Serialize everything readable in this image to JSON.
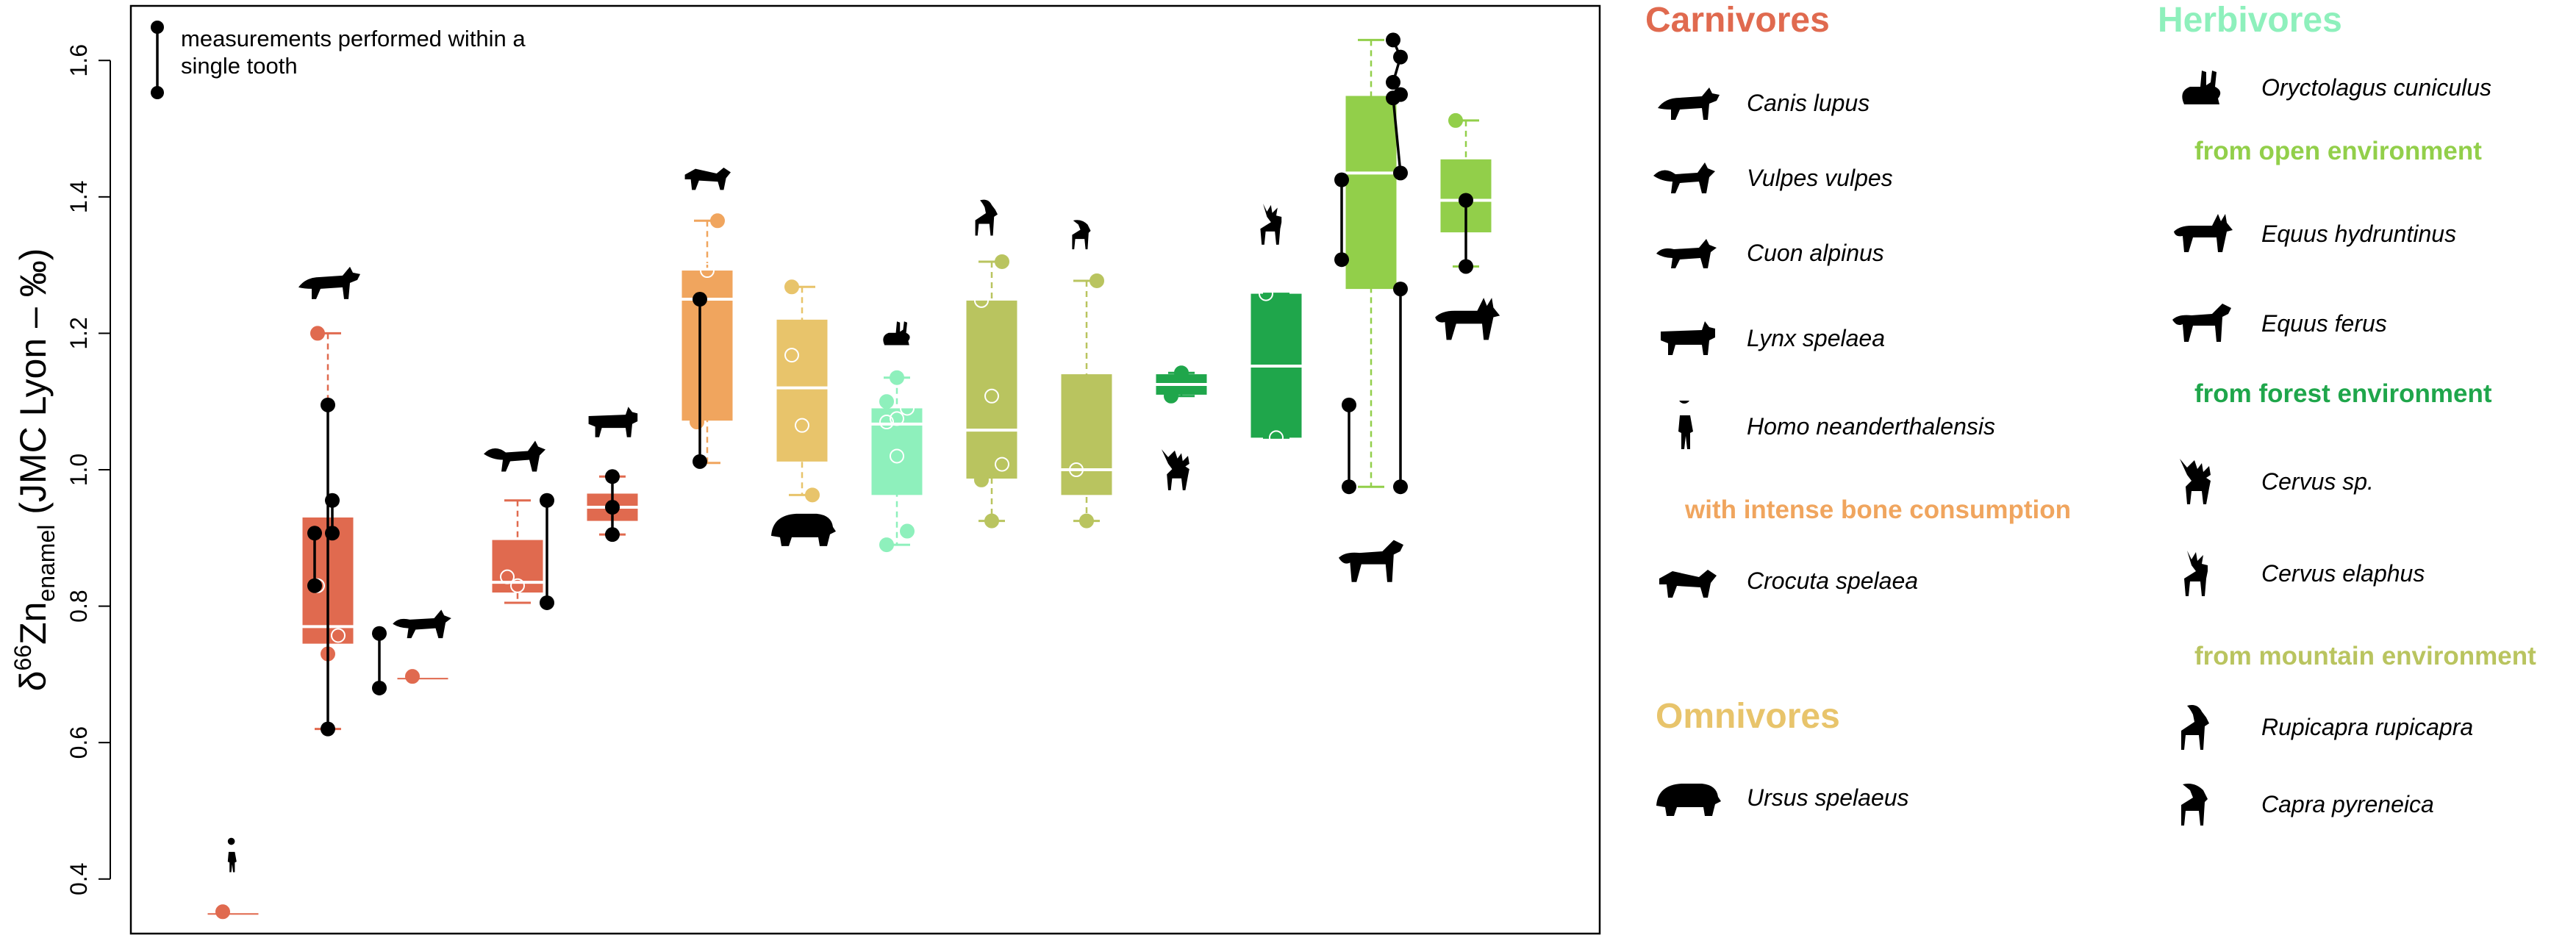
{
  "chart_data": {
    "type": "box",
    "ylabel_prefix": "δ",
    "ylabel_sup": "66",
    "ylabel_main": "Zn",
    "ylabel_sub": "enamel",
    "ylabel_rest": " (JMC Lyon ‒ ‰)",
    "ylim": [
      0.32,
      1.68
    ],
    "yticks": [
      "0.4",
      "0.6",
      "0.8",
      "1.0",
      "1.2",
      "1.4",
      "1.6"
    ],
    "ytick_values": [
      0.4,
      0.6,
      0.8,
      1.0,
      1.2,
      1.4,
      1.6
    ],
    "grid": false,
    "note": {
      "line1": "measurements performed within a",
      "line2": "single tooth"
    },
    "colors": {
      "carnivore": "#e06a4f",
      "bone": "#f0a55e",
      "omnivore": "#e8c46b",
      "herbivore_rabbit": "#8ef0bc",
      "open": "#92cf4a",
      "forest": "#1fa64b",
      "mountain": "#b9c45f",
      "tooth_link": "#000000"
    },
    "groups": [
      {
        "species": "Homo neanderthalensis",
        "color": "carnivore",
        "icon": "human-icon",
        "q1": 0.352,
        "median": 0.352,
        "q3": 0.352,
        "whisker_low": 0.352,
        "whisker_high": 0.352,
        "points": [
          0.352
        ]
      },
      {
        "species": "Canis lupus",
        "color": "carnivore",
        "icon": "wolf-icon",
        "q1": 0.745,
        "median": 0.77,
        "q3": 0.93,
        "whisker_low": 0.62,
        "whisker_high": 1.2,
        "points": [
          0.83,
          0.73,
          0.757,
          1.2
        ]
      },
      {
        "species": "Cuon alpinus",
        "color": "carnivore",
        "icon": "dhole-icon",
        "q1": 0.697,
        "median": 0.697,
        "q3": 0.697,
        "whisker_low": 0.697,
        "whisker_high": 0.697,
        "points": [
          0.697
        ]
      },
      {
        "species": "Vulpes vulpes",
        "color": "carnivore",
        "icon": "fox-icon",
        "q1": 0.82,
        "median": 0.835,
        "q3": 0.897,
        "whisker_low": 0.805,
        "whisker_high": 0.955,
        "points": [
          0.843,
          0.83
        ]
      },
      {
        "species": "Lynx spelaea",
        "color": "carnivore",
        "icon": "lynx-icon",
        "q1": 0.925,
        "median": 0.945,
        "q3": 0.965,
        "whisker_low": 0.905,
        "whisker_high": 0.99,
        "points": []
      },
      {
        "species": "Crocuta spelaea",
        "color": "bone",
        "icon": "hyena-icon",
        "q1": 1.072,
        "median": 1.25,
        "q3": 1.292,
        "whisker_low": 1.01,
        "whisker_high": 1.365,
        "points": [
          1.07,
          1.292,
          1.365
        ]
      },
      {
        "species": "Ursus spelaeus",
        "color": "omnivore",
        "icon": "bear-icon",
        "q1": 1.012,
        "median": 1.12,
        "q3": 1.22,
        "whisker_low": 0.963,
        "whisker_high": 1.268,
        "points": [
          1.168,
          1.065,
          0.963,
          1.268
        ]
      },
      {
        "species": "Oryctolagus cuniculus",
        "color": "herbivore_rabbit",
        "icon": "rabbit-icon",
        "q1": 0.963,
        "median": 1.067,
        "q3": 1.09,
        "whisker_low": 0.89,
        "whisker_high": 1.135,
        "points": [
          1.07,
          1.075,
          1.09,
          1.1,
          1.02,
          0.91,
          0.89,
          1.135
        ]
      },
      {
        "species": "Rupicapra rupicapra",
        "color": "mountain",
        "icon": "chamois-icon",
        "q1": 0.987,
        "median": 1.058,
        "q3": 1.248,
        "whisker_low": 0.925,
        "whisker_high": 1.305,
        "points": [
          1.248,
          1.108,
          1.008,
          0.985,
          0.925,
          1.305
        ]
      },
      {
        "species": "Capra pyreneica",
        "color": "mountain",
        "icon": "ibex-icon",
        "q1": 0.963,
        "median": 1.0,
        "q3": 1.14,
        "whisker_low": 0.925,
        "whisker_high": 1.277,
        "points": [
          1.0,
          0.925,
          1.277
        ]
      },
      {
        "species": "Cervus sp.",
        "color": "forest",
        "icon": "megaloceros-icon",
        "q1": 1.11,
        "median": 1.125,
        "q3": 1.14,
        "whisker_low": 1.108,
        "whisker_high": 1.142,
        "points": [
          1.108,
          1.142
        ]
      },
      {
        "species": "Cervus elaphus",
        "color": "forest",
        "icon": "red-deer-icon",
        "q1": 1.047,
        "median": 1.152,
        "q3": 1.258,
        "whisker_low": 1.047,
        "whisker_high": 1.258,
        "points": [
          1.258,
          1.047
        ]
      },
      {
        "species": "Equus ferus",
        "color": "open",
        "icon": "horse-icon",
        "q1": 1.265,
        "median": 1.435,
        "q3": 1.548,
        "whisker_low": 0.975,
        "whisker_high": 1.63,
        "points": []
      },
      {
        "species": "Equus hydruntinus",
        "color": "open",
        "icon": "donkey-icon",
        "q1": 1.348,
        "median": 1.395,
        "q3": 1.455,
        "whisker_low": 1.298,
        "whisker_high": 1.512,
        "points": [
          1.512
        ]
      }
    ],
    "tooth_links": [
      {
        "group": 1,
        "offset": 0,
        "values": [
          1.095,
          0.62
        ]
      },
      {
        "group": 1,
        "offset": 6,
        "values": [
          0.955,
          0.907
        ]
      },
      {
        "group": 1,
        "offset": -18,
        "values": [
          0.907,
          0.83
        ]
      },
      {
        "group": 1,
        "offset": 70,
        "values": [
          0.76,
          0.68
        ]
      },
      {
        "group": 3,
        "offset": 40,
        "values": [
          0.955,
          0.805
        ]
      },
      {
        "group": 4,
        "offset": 0,
        "values": [
          0.99,
          0.945,
          0.905
        ]
      },
      {
        "group": 5,
        "offset": -10,
        "values": [
          1.25,
          1.012
        ]
      },
      {
        "group": 12,
        "offset": -40,
        "values": [
          1.425,
          1.308
        ]
      },
      {
        "group": 12,
        "offset": 30,
        "values": [
          1.63,
          1.605,
          1.568,
          1.55,
          1.545,
          1.435
        ]
      },
      {
        "group": 12,
        "offset": -30,
        "values": [
          1.095,
          0.975
        ]
      },
      {
        "group": 12,
        "offset": 40,
        "values": [
          1.265,
          0.975
        ]
      },
      {
        "group": 13,
        "offset": 0,
        "values": [
          1.395,
          1.298
        ]
      }
    ],
    "legend": {
      "carnivores_title": "Carnivores",
      "herbivores_title": "Herbivores",
      "omnivores_title": "Omnivores",
      "bone_title": "with intense bone consumption",
      "open_title": "from open environment",
      "forest_title": "from forest environment",
      "mountain_title": "from mountain environment",
      "entries": {
        "canis": {
          "species": "Canis lupus",
          "icon": "wolf-icon"
        },
        "vulpes": {
          "species": "Vulpes vulpes",
          "icon": "fox-icon"
        },
        "cuon": {
          "species": "Cuon alpinus",
          "icon": "dhole-icon"
        },
        "lynx": {
          "species": "Lynx spelaea",
          "icon": "lynx-icon"
        },
        "homo": {
          "species": "Homo neanderthalensis",
          "icon": "human-icon"
        },
        "crocuta": {
          "species": "Crocuta spelaea",
          "icon": "hyena-icon"
        },
        "ursus": {
          "species": "Ursus spelaeus",
          "icon": "bear-icon"
        },
        "oryctolagus": {
          "species": "Oryctolagus cuniculus",
          "icon": "rabbit-icon"
        },
        "hydruntinus": {
          "species": "Equus hydruntinus",
          "icon": "donkey-icon"
        },
        "ferus": {
          "species": "Equus ferus",
          "icon": "horse-icon"
        },
        "cervus_sp": {
          "species": "Cervus sp.",
          "icon": "megaloceros-icon"
        },
        "cervus_elaphus": {
          "species": "Cervus elaphus",
          "icon": "red-deer-icon"
        },
        "rupicapra": {
          "species": "Rupicapra rupicapra",
          "icon": "chamois-icon"
        },
        "capra": {
          "species": "Capra pyreneica",
          "icon": "ibex-icon"
        }
      }
    }
  }
}
